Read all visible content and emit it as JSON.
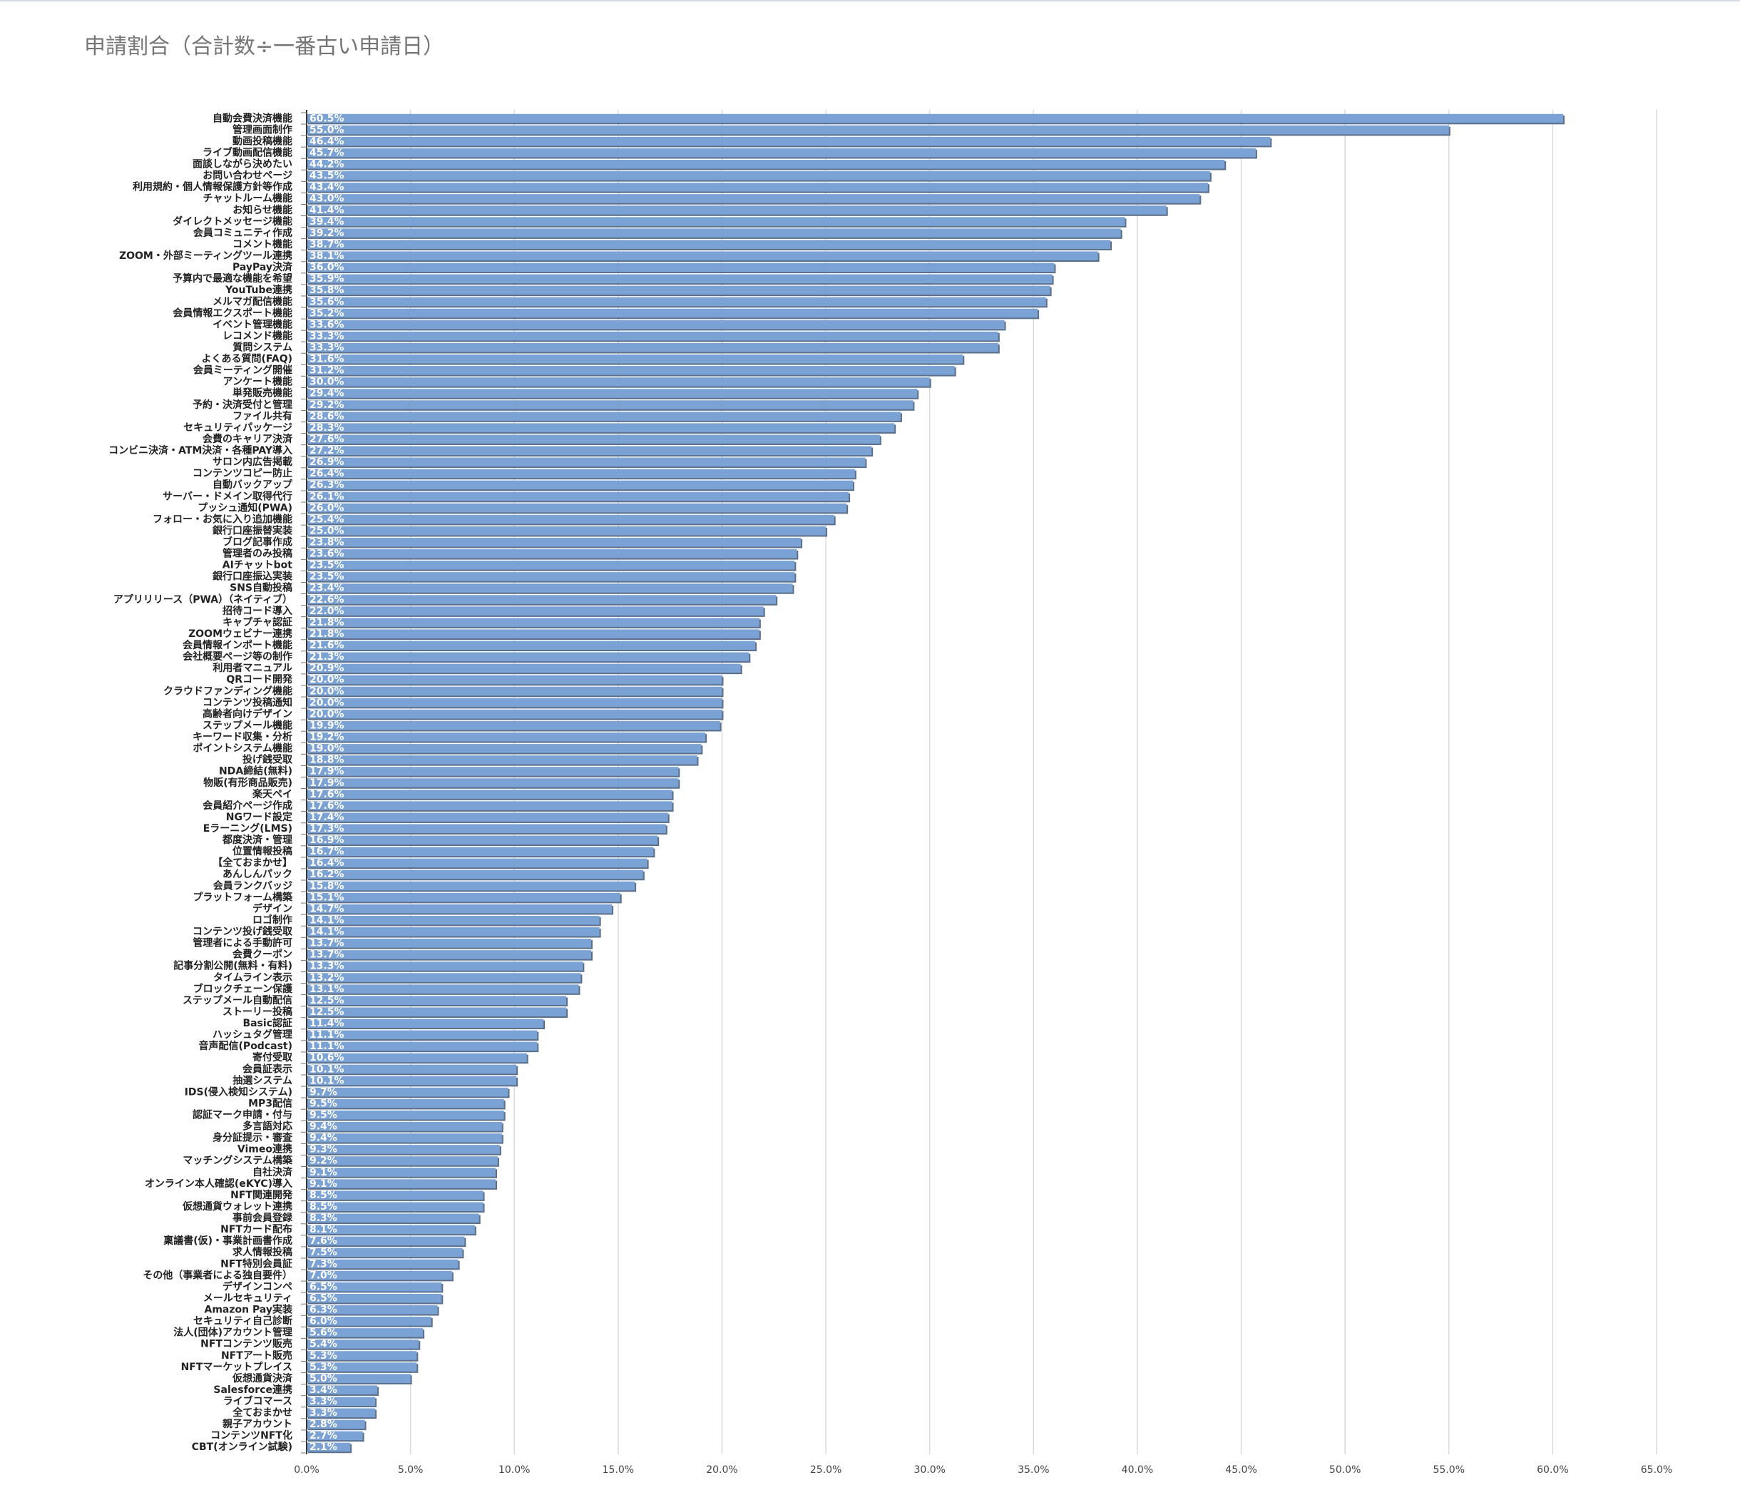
{
  "chart_data": {
    "type": "bar",
    "orientation": "horizontal",
    "title": "申請割合（合計数÷一番古い申請日）",
    "xlabel": "",
    "ylabel": "",
    "xlim": [
      0,
      65
    ],
    "grid": true,
    "legend": "none",
    "colors": {
      "bar": "#7aa2d4",
      "bar_shadow": "#5b6f8a",
      "grid": "#d9d9d9"
    },
    "x_ticks": [
      "0.0%",
      "5.0%",
      "10.0%",
      "15.0%",
      "20.0%",
      "25.0%",
      "30.0%",
      "35.0%",
      "40.0%",
      "45.0%",
      "50.0%",
      "55.0%",
      "60.0%",
      "65.0%"
    ],
    "categories": [
      "自動会費決済機能",
      "管理画面制作",
      "動画投稿機能",
      "ライブ動画配信機能",
      "面談しながら決めたい",
      "お問い合わせページ",
      "利用規約・個人情報保護方針等作成",
      "チャットルーム機能",
      "お知らせ機能",
      "ダイレクトメッセージ機能",
      "会員コミュニティ作成",
      "コメント機能",
      "ZOOM・外部ミーティングツール連携",
      "PayPay決済",
      "予算内で最適な機能を希望",
      "YouTube連携",
      "メルマガ配信機能",
      "会員情報エクスポート機能",
      "イベント管理機能",
      "レコメンド機能",
      "質問システム",
      "よくある質問(FAQ)",
      "会員ミーティング開催",
      "アンケート機能",
      "単発販売機能",
      "予約・決済受付と管理",
      "ファイル共有",
      "セキュリティパッケージ",
      "会費のキャリア決済",
      "コンビニ決済・ATM決済・各種PAY導入",
      "サロン内広告掲載",
      "コンテンツコピー防止",
      "自動バックアップ",
      "サーバー・ドメイン取得代行",
      "プッシュ通知(PWA)",
      "フォロー・お気に入り追加機能",
      "銀行口座振替実装",
      "ブログ記事作成",
      "管理者のみ投稿",
      "AIチャットbot",
      "銀行口座振込実装",
      "SNS自動投稿",
      "アプリリリース（PWA）（ネイティブ）",
      "招待コード導入",
      "キャプチャ認証",
      "ZOOMウェビナー連携",
      "会員情報インポート機能",
      "会社概要ページ等の制作",
      "利用者マニュアル",
      "QRコード開発",
      "クラウドファンディング機能",
      "コンテンツ投稿通知",
      "高齢者向けデザイン",
      "ステップメール機能",
      "キーワード収集・分析",
      "ポイントシステム機能",
      "投げ銭受取",
      "NDA締結(無料)",
      "物販(有形商品販売)",
      "楽天ペイ",
      "会員紹介ページ作成",
      "NGワード設定",
      "Eラーニング(LMS)",
      "都度決済・管理",
      "位置情報投稿",
      "【全ておまかせ】",
      "あんしんパック",
      "会員ランクバッジ",
      "プラットフォーム構築",
      "デザイン",
      "ロゴ制作",
      "コンテンツ投げ銭受取",
      "管理者による手動許可",
      "会費クーポン",
      "記事分割公開(無料・有料)",
      "タイムライン表示",
      "ブロックチェーン保護",
      "ステップメール自動配信",
      "ストーリー投稿",
      "Basic認証",
      "ハッシュタグ管理",
      "音声配信(Podcast)",
      "寄付受取",
      "会員証表示",
      "抽選システム",
      "IDS(侵入検知システム)",
      "MP3配信",
      "認証マーク申請・付与",
      "多言語対応",
      "身分証提示・審査",
      "Vimeo連携",
      "マッチングシステム構築",
      "自社決済",
      "オンライン本人確認(eKYC)導入",
      "NFT関連開発",
      "仮想通貨ウォレット連携",
      "事前会員登録",
      "NFTカード配布",
      "稟議書(仮)・事業計画書作成",
      "求人情報投稿",
      "NFT特別会員証",
      "その他（事業者による独自要件）",
      "デザインコンペ",
      "メールセキュリティ",
      "Amazon Pay実装",
      "セキュリティ自己診断",
      "法人(団体)アカウント管理",
      "NFTコンテンツ販売",
      "NFTアート販売",
      "NFTマーケットプレイス",
      "仮想通貨決済",
      "Salesforce連携",
      "ライブコマース",
      "全ておまかせ",
      "親子アカウント",
      "コンテンツNFT化",
      "CBT(オンライン試験)"
    ],
    "values": [
      60.5,
      55.0,
      46.4,
      45.7,
      44.2,
      43.5,
      43.4,
      43.0,
      41.4,
      39.4,
      39.2,
      38.7,
      38.1,
      36.0,
      35.9,
      35.8,
      35.6,
      35.2,
      33.6,
      33.3,
      33.3,
      31.6,
      31.2,
      30.0,
      29.4,
      29.2,
      28.6,
      28.3,
      27.6,
      27.2,
      26.9,
      26.4,
      26.3,
      26.1,
      26.0,
      25.4,
      25.0,
      23.8,
      23.6,
      23.5,
      23.5,
      23.4,
      22.6,
      22.0,
      21.8,
      21.8,
      21.6,
      21.3,
      20.9,
      20.0,
      20.0,
      20.0,
      20.0,
      19.9,
      19.2,
      19.0,
      18.8,
      17.9,
      17.9,
      17.6,
      17.6,
      17.4,
      17.3,
      16.9,
      16.7,
      16.4,
      16.2,
      15.8,
      15.1,
      14.7,
      14.1,
      14.1,
      13.7,
      13.7,
      13.3,
      13.2,
      13.1,
      12.5,
      12.5,
      11.4,
      11.1,
      11.1,
      10.6,
      10.1,
      10.1,
      9.7,
      9.5,
      9.5,
      9.4,
      9.4,
      9.3,
      9.2,
      9.1,
      9.1,
      8.5,
      8.5,
      8.3,
      8.1,
      7.6,
      7.5,
      7.3,
      7.0,
      6.5,
      6.5,
      6.3,
      6.0,
      5.6,
      5.4,
      5.3,
      5.3,
      5.0,
      3.4,
      3.3,
      3.3,
      2.8,
      2.7,
      2.1
    ],
    "data_labels": [
      "60.5%",
      "55.0%",
      "46.4%",
      "45.7%",
      "44.2%",
      "43.5%",
      "43.4%",
      "43.0%",
      "41.4%",
      "39.4%",
      "39.2%",
      "38.7%",
      "38.1%",
      "36.0%",
      "35.9%",
      "35.8%",
      "35.6%",
      "35.2%",
      "33.6%",
      "33.3%",
      "33.3%",
      "31.6%",
      "31.2%",
      "30.0%",
      "29.4%",
      "29.2%",
      "28.6%",
      "28.3%",
      "27.6%",
      "27.2%",
      "26.9%",
      "26.4%",
      "26.3%",
      "26.1%",
      "26.0%",
      "25.4%",
      "25.0%",
      "23.8%",
      "23.6%",
      "23.5%",
      "23.5%",
      "23.4%",
      "22.6%",
      "22.0%",
      "21.8%",
      "21.8%",
      "21.6%",
      "21.3%",
      "20.9%",
      "20.0%",
      "20.0%",
      "20.0%",
      "20.0%",
      "19.9%",
      "19.2%",
      "19.0%",
      "18.8%",
      "17.9%",
      "17.9%",
      "17.6%",
      "17.6%",
      "17.4%",
      "17.3%",
      "16.9%",
      "16.7%",
      "16.4%",
      "16.2%",
      "15.8%",
      "15.1%",
      "14.7%",
      "14.1%",
      "14.1%",
      "13.7%",
      "13.7%",
      "13.3%",
      "13.2%",
      "13.1%",
      "12.5%",
      "12.5%",
      "11.4%",
      "11.1%",
      "11.1%",
      "10.6%",
      "10.1%",
      "10.1%",
      "9.7%",
      "9.5%",
      "9.5%",
      "9.4%",
      "9.4%",
      "9.3%",
      "9.2%",
      "9.1%",
      "9.1%",
      "8.5%",
      "8.5%",
      "8.3%",
      "8.1%",
      "7.6%",
      "7.5%",
      "7.3%",
      "7.0%",
      "6.5%",
      "6.5%",
      "6.3%",
      "6.0%",
      "5.6%",
      "5.4%",
      "5.3%",
      "5.3%",
      "5.0%",
      "3.4%",
      "3.3%",
      "3.3%",
      "2.8%",
      "2.7%",
      "2.1%"
    ]
  }
}
